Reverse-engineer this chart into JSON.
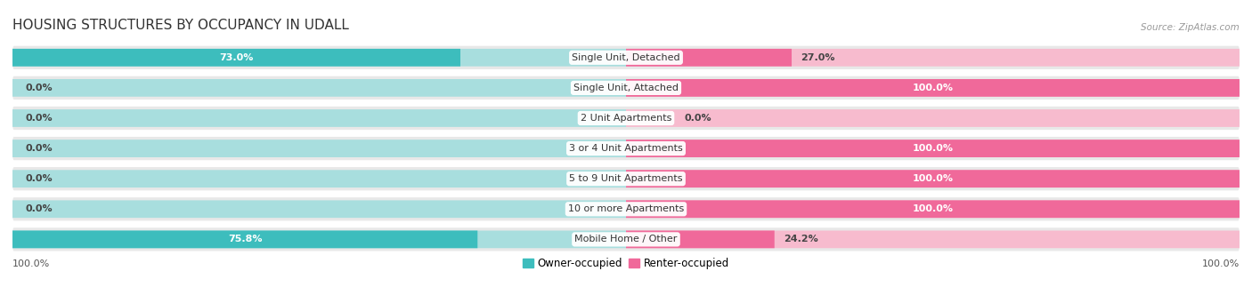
{
  "title": "HOUSING STRUCTURES BY OCCUPANCY IN UDALL",
  "source": "Source: ZipAtlas.com",
  "categories": [
    "Single Unit, Detached",
    "Single Unit, Attached",
    "2 Unit Apartments",
    "3 or 4 Unit Apartments",
    "5 to 9 Unit Apartments",
    "10 or more Apartments",
    "Mobile Home / Other"
  ],
  "owner_pct": [
    73.0,
    0.0,
    0.0,
    0.0,
    0.0,
    0.0,
    75.8
  ],
  "renter_pct": [
    27.0,
    100.0,
    0.0,
    100.0,
    100.0,
    100.0,
    24.2
  ],
  "owner_color": "#3DBDBD",
  "renter_color": "#F0699A",
  "owner_color_light": "#A8DEDE",
  "renter_color_light": "#F7BBCE",
  "row_bg_color": "#E8E8E8",
  "title_fontsize": 11,
  "label_fontsize": 8,
  "tick_fontsize": 8,
  "source_fontsize": 7.5,
  "background_color": "#FFFFFF",
  "stub_size": 8.0,
  "total_width": 100.0
}
